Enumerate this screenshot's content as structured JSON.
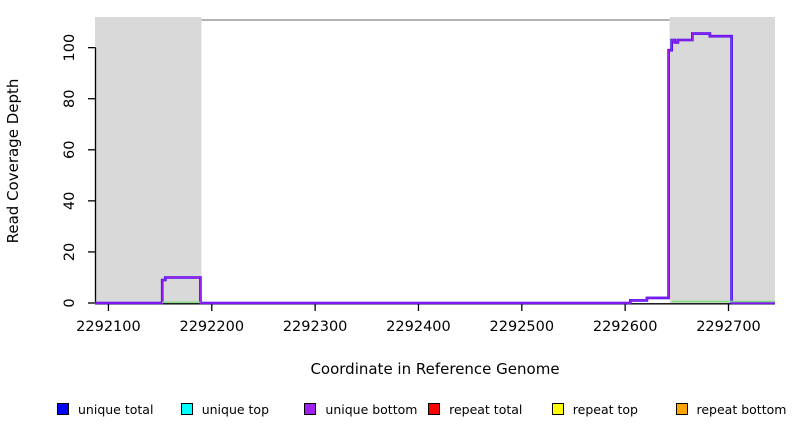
{
  "chart_data": {
    "type": "line",
    "title": "",
    "xlabel": "Coordinate in Reference Genome",
    "ylabel": "Read Coverage Depth",
    "xlim": [
      2292087,
      2292745
    ],
    "ylim": [
      0,
      112
    ],
    "x_ticks": [
      2292100,
      2292200,
      2292300,
      2292400,
      2292500,
      2292600,
      2292700
    ],
    "y_ticks": [
      0,
      20,
      40,
      60,
      80,
      100
    ],
    "grid": false,
    "legend_position": "bottom",
    "background_color": "#ffffff",
    "highlight_regions": [
      {
        "x0": 2292087,
        "x1": 2292190,
        "color": "#d9d9d9"
      },
      {
        "x0": 2292643,
        "x1": 2292745,
        "color": "#d9d9d9"
      }
    ],
    "top_border_color": "#999999",
    "axis_color": "#000000",
    "series": [
      {
        "name": "unique total",
        "color": "#2a00f0",
        "width": 2.6,
        "paths": [
          [
            [
              2292087,
              0
            ],
            [
              2292152,
              0
            ],
            [
              2292152,
              9
            ],
            [
              2292155,
              9
            ],
            [
              2292155,
              10
            ],
            [
              2292189,
              10
            ],
            [
              2292189,
              0
            ],
            [
              2292605,
              0
            ],
            [
              2292605,
              1
            ],
            [
              2292621,
              1
            ],
            [
              2292621,
              2
            ],
            [
              2292642,
              2
            ],
            [
              2292642,
              99
            ],
            [
              2292645,
              99
            ],
            [
              2292645,
              103
            ],
            [
              2292648,
              103
            ],
            [
              2292648,
              102
            ],
            [
              2292651,
              102
            ],
            [
              2292651,
              103
            ],
            [
              2292665,
              103
            ],
            [
              2292665,
              105.5
            ],
            [
              2292682,
              105.5
            ],
            [
              2292682,
              104.5
            ],
            [
              2292703,
              104.5
            ],
            [
              2292703,
              0
            ],
            [
              2292745,
              0
            ]
          ]
        ]
      },
      {
        "name": "unique bottom",
        "color": "#a020f0",
        "width": 1.4,
        "paths": [
          [
            [
              2292087,
              0
            ],
            [
              2292152,
              0
            ],
            [
              2292152,
              9
            ],
            [
              2292155,
              9
            ],
            [
              2292155,
              10
            ],
            [
              2292189,
              10
            ],
            [
              2292189,
              0
            ],
            [
              2292605,
              0
            ],
            [
              2292605,
              1
            ],
            [
              2292621,
              1
            ],
            [
              2292621,
              2
            ],
            [
              2292642,
              2
            ],
            [
              2292642,
              99
            ],
            [
              2292645,
              99
            ],
            [
              2292645,
              103
            ],
            [
              2292648,
              103
            ],
            [
              2292648,
              102
            ],
            [
              2292651,
              102
            ],
            [
              2292651,
              103
            ],
            [
              2292665,
              103
            ],
            [
              2292665,
              105.5
            ],
            [
              2292682,
              105.5
            ],
            [
              2292682,
              104.5
            ],
            [
              2292703,
              104.5
            ],
            [
              2292703,
              0
            ],
            [
              2292745,
              0
            ]
          ]
        ]
      },
      {
        "name": "green baseline segments",
        "color": "#7ddc7d",
        "width": 1.4,
        "paths": [
          [
            [
              2292152,
              0.3
            ],
            [
              2292189,
              0.3
            ]
          ],
          [
            [
              2292645,
              0.6
            ],
            [
              2292745,
              0.6
            ]
          ]
        ]
      }
    ],
    "legend": [
      {
        "label": "unique total",
        "color": "#0000ff"
      },
      {
        "label": "unique top",
        "color": "#00ffff"
      },
      {
        "label": "unique bottom",
        "color": "#a020f0"
      },
      {
        "label": "repeat total",
        "color": "#ff0000"
      },
      {
        "label": "repeat top",
        "color": "#ffff00"
      },
      {
        "label": "repeat bottom",
        "color": "#ffa500"
      }
    ]
  }
}
